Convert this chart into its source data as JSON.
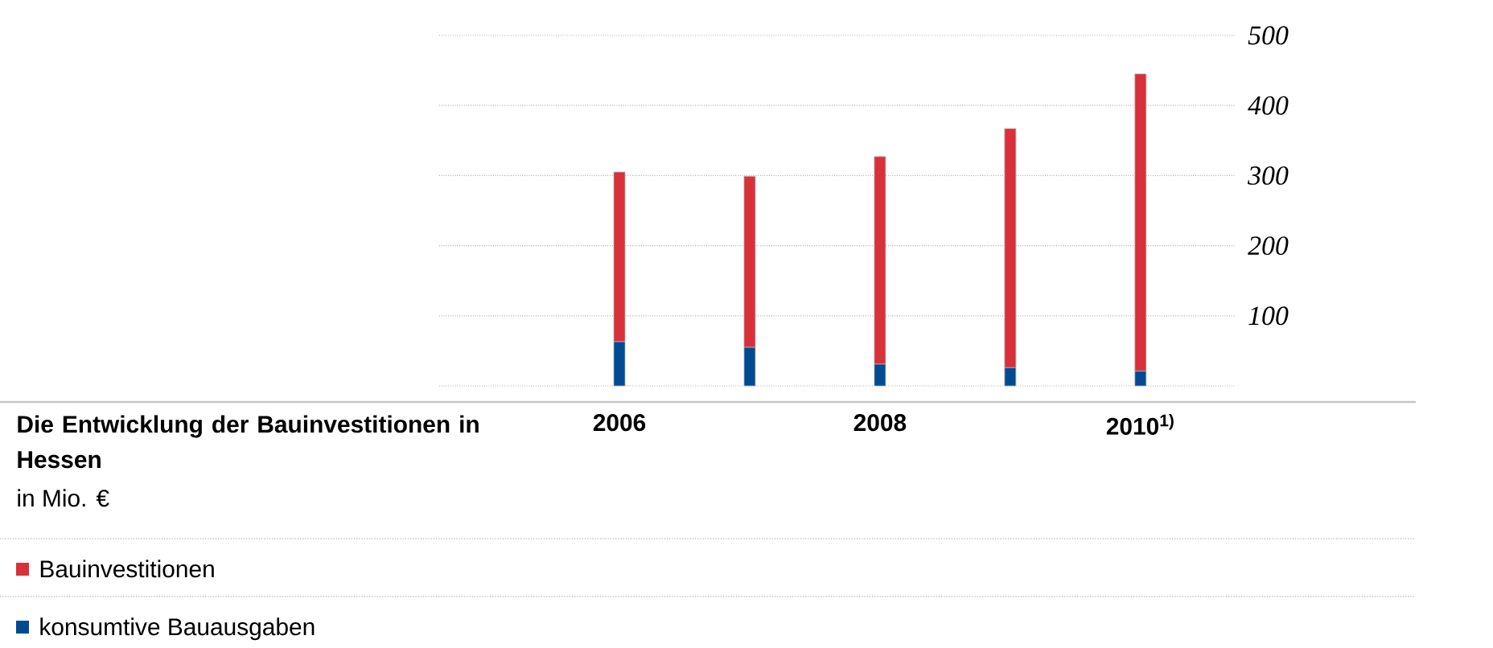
{
  "chart_data": {
    "type": "bar",
    "stacked": true,
    "title": "Die Entwicklung der Bauinvestitionen in Hessen",
    "subtitle": "in Mio. €",
    "categories": [
      "2006",
      null,
      "2008",
      null,
      "2010$^{1)}$"
    ],
    "series": [
      {
        "name": "konsumtive Bauausgaben",
        "color": "#004a93",
        "values": [
          63,
          55,
          31,
          26,
          21
        ]
      },
      {
        "name": "Bauinvestitionen",
        "color": "#d9303a",
        "values": [
          242,
          244,
          296,
          341,
          424
        ]
      }
    ],
    "ylim": [
      0,
      500
    ],
    "yticks": [
      {
        "value": 0,
        "label": null
      },
      100,
      200,
      300,
      400,
      500
    ],
    "grid": "y",
    "legend": "bottom"
  }
}
